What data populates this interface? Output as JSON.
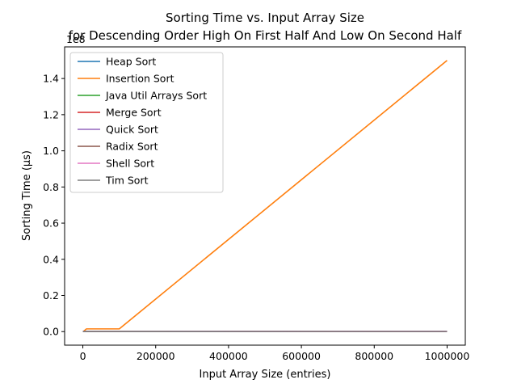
{
  "chart_data": {
    "type": "line",
    "title_line1": "Sorting Time vs. Input Array Size",
    "title_line2": "for Descending Order High On First Half And Low On Second Half",
    "xlabel": "Input Array Size (entries)",
    "ylabel": "Sorting Time (µs)",
    "y_offset_label": "1e8",
    "xlim": [
      -50000,
      1050000
    ],
    "ylim": [
      -7500000,
      157500000
    ],
    "x_ticks": [
      0,
      200000,
      400000,
      600000,
      800000,
      1000000
    ],
    "x_tick_labels": [
      "0",
      "200000",
      "400000",
      "600000",
      "800000",
      "1000000"
    ],
    "y_ticks": [
      0,
      20000000,
      40000000,
      60000000,
      80000000,
      100000000,
      120000000,
      140000000
    ],
    "y_tick_labels": [
      "0.0",
      "0.2",
      "0.4",
      "0.6",
      "0.8",
      "1.0",
      "1.2",
      "1.4"
    ],
    "grid": false,
    "legend_position": "top-left",
    "x": [
      10,
      100,
      1000,
      10000,
      100000,
      1000000
    ],
    "series": [
      {
        "name": "Heap Sort",
        "color": "#1f77b4",
        "values": [
          2,
          20,
          150,
          1500,
          15000,
          180000
        ]
      },
      {
        "name": "Insertion Sort",
        "color": "#ff7f0e",
        "values": [
          1,
          50,
          15000,
          1500000,
          1500000,
          150000000
        ]
      },
      {
        "name": "Java Util Arrays Sort",
        "color": "#2ca02c",
        "values": [
          1,
          10,
          80,
          900,
          9000,
          90000
        ]
      },
      {
        "name": "Merge Sort",
        "color": "#d62728",
        "values": [
          2,
          15,
          120,
          1300,
          13000,
          140000
        ]
      },
      {
        "name": "Quick Sort",
        "color": "#9467bd",
        "values": [
          1,
          12,
          100,
          1100,
          11000,
          120000
        ]
      },
      {
        "name": "Radix Sort",
        "color": "#8c564b",
        "values": [
          3,
          20,
          110,
          1000,
          10000,
          100000
        ]
      },
      {
        "name": "Shell Sort",
        "color": "#e377c2",
        "values": [
          1,
          12,
          130,
          1600,
          17000,
          200000
        ]
      },
      {
        "name": "Tim Sort",
        "color": "#7f7f7f",
        "values": [
          1,
          8,
          70,
          800,
          8000,
          85000
        ]
      }
    ]
  }
}
